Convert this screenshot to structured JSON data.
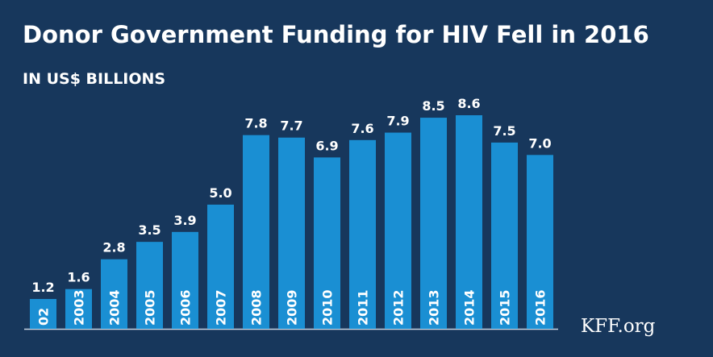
{
  "chart_data": {
    "type": "bar",
    "title": "Donor Government Funding for HIV Fell in 2016",
    "subtitle": "IN US$ BILLIONS",
    "source": "KFF.org",
    "categories": [
      "02",
      "2003",
      "2004",
      "2005",
      "2006",
      "2007",
      "2008",
      "2009",
      "2010",
      "2011",
      "2012",
      "2013",
      "2014",
      "2015",
      "2016"
    ],
    "values": [
      1.2,
      1.6,
      2.8,
      3.5,
      3.9,
      5.0,
      7.8,
      7.7,
      6.9,
      7.6,
      7.9,
      8.5,
      8.6,
      7.5,
      7.0
    ],
    "value_labels": [
      "1.2",
      "1.6",
      "2.8",
      "3.5",
      "3.9",
      "5.0",
      "7.8",
      "7.7",
      "6.9",
      "7.6",
      "7.9",
      "8.5",
      "8.6",
      "7.5",
      "7.0"
    ],
    "color": "#1a8fd3"
  }
}
